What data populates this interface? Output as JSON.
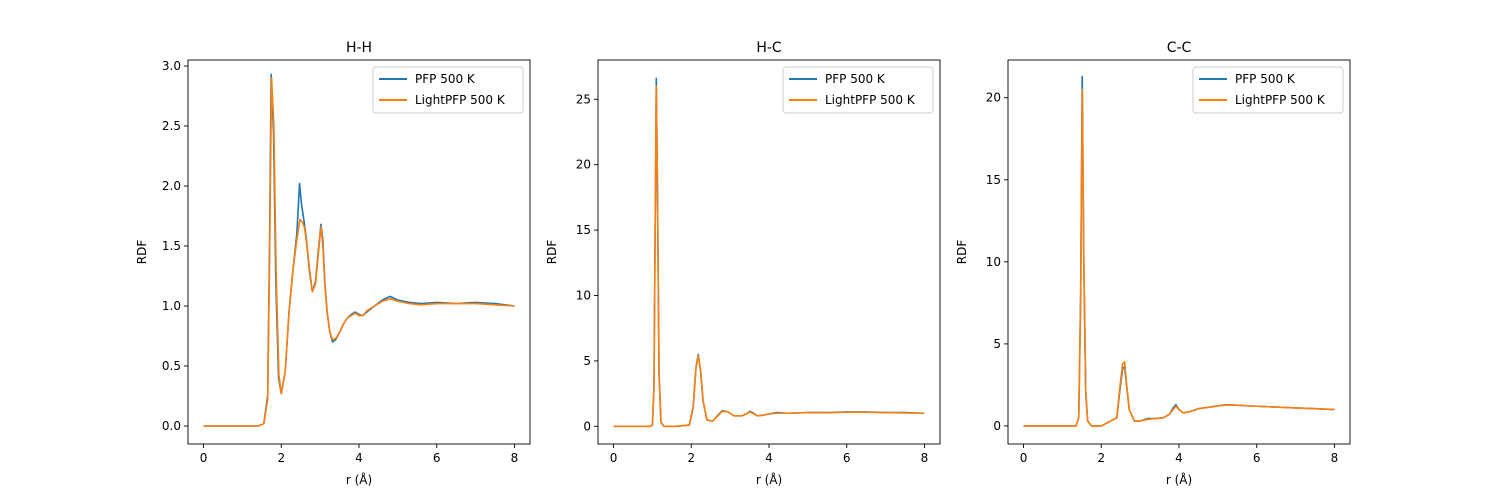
{
  "legend_labels": [
    "PFP 500 K",
    "LightPFP 500 K"
  ],
  "colors": {
    "pfp": "#1f77b4",
    "lightpfp": "#ff7f0e"
  },
  "chart_data": [
    {
      "type": "line",
      "title": "H-H",
      "xlabel": "r (Å)",
      "ylabel": "RDF",
      "xlim": [
        -0.4,
        8.4
      ],
      "ylim": [
        -0.15,
        3.05
      ],
      "xticks": [
        0,
        2,
        4,
        6,
        8
      ],
      "yticks": [
        0.0,
        0.5,
        1.0,
        1.5,
        2.0,
        2.5,
        3.0
      ],
      "ytick_labels": [
        "0.0",
        "0.5",
        "1.0",
        "1.5",
        "2.0",
        "2.5",
        "3.0"
      ],
      "grid": false,
      "legend": "upper right",
      "series": [
        {
          "name": "PFP 500 K",
          "color": "#1f77b4",
          "x": [
            0,
            1.4,
            1.55,
            1.65,
            1.7,
            1.74,
            1.8,
            1.86,
            1.93,
            2.0,
            2.1,
            2.2,
            2.3,
            2.4,
            2.47,
            2.52,
            2.58,
            2.65,
            2.72,
            2.8,
            2.88,
            2.95,
            3.02,
            3.07,
            3.12,
            3.18,
            3.25,
            3.32,
            3.4,
            3.5,
            3.6,
            3.7,
            3.8,
            3.9,
            4.0,
            4.1,
            4.2,
            4.4,
            4.6,
            4.8,
            5.0,
            5.3,
            5.6,
            6.0,
            6.5,
            7.0,
            7.5,
            8.0
          ],
          "y": [
            0,
            0,
            0.02,
            0.25,
            1.55,
            2.93,
            2.45,
            1.2,
            0.4,
            0.27,
            0.45,
            0.95,
            1.3,
            1.6,
            2.02,
            1.85,
            1.72,
            1.55,
            1.3,
            1.12,
            1.2,
            1.45,
            1.68,
            1.55,
            1.2,
            0.95,
            0.78,
            0.7,
            0.72,
            0.78,
            0.85,
            0.9,
            0.93,
            0.95,
            0.93,
            0.92,
            0.95,
            1.0,
            1.05,
            1.08,
            1.05,
            1.03,
            1.02,
            1.03,
            1.02,
            1.03,
            1.02,
            1.0
          ]
        },
        {
          "name": "LightPFP 500 K",
          "color": "#ff7f0e",
          "x": [
            0,
            1.4,
            1.55,
            1.65,
            1.7,
            1.75,
            1.81,
            1.87,
            1.94,
            2.0,
            2.1,
            2.2,
            2.3,
            2.4,
            2.48,
            2.54,
            2.6,
            2.66,
            2.73,
            2.8,
            2.88,
            2.95,
            3.02,
            3.07,
            3.12,
            3.18,
            3.25,
            3.32,
            3.4,
            3.5,
            3.6,
            3.7,
            3.8,
            3.9,
            4.0,
            4.1,
            4.2,
            4.4,
            4.6,
            4.8,
            5.0,
            5.3,
            5.6,
            6.0,
            6.5,
            7.0,
            7.5,
            8.0
          ],
          "y": [
            0,
            0,
            0.02,
            0.22,
            1.4,
            2.9,
            2.5,
            1.25,
            0.42,
            0.27,
            0.45,
            0.95,
            1.3,
            1.55,
            1.72,
            1.7,
            1.65,
            1.5,
            1.3,
            1.12,
            1.18,
            1.42,
            1.66,
            1.5,
            1.18,
            0.95,
            0.78,
            0.72,
            0.73,
            0.78,
            0.85,
            0.9,
            0.92,
            0.94,
            0.92,
            0.92,
            0.96,
            1.0,
            1.04,
            1.06,
            1.04,
            1.02,
            1.01,
            1.02,
            1.02,
            1.02,
            1.01,
            1.0
          ]
        }
      ]
    },
    {
      "type": "line",
      "title": "H-C",
      "xlabel": "r (Å)",
      "ylabel": "RDF",
      "xlim": [
        -0.4,
        8.4
      ],
      "ylim": [
        -1.35,
        28.0
      ],
      "xticks": [
        0,
        2,
        4,
        6,
        8
      ],
      "yticks": [
        0,
        5,
        10,
        15,
        20,
        25
      ],
      "ytick_labels": [
        "0",
        "5",
        "10",
        "15",
        "20",
        "25"
      ],
      "grid": false,
      "legend": "upper right",
      "series": [
        {
          "name": "PFP 500 K",
          "color": "#1f77b4",
          "x": [
            0,
            0.95,
            1.0,
            1.04,
            1.07,
            1.1,
            1.13,
            1.17,
            1.22,
            1.3,
            1.6,
            1.95,
            2.05,
            2.12,
            2.18,
            2.24,
            2.3,
            2.4,
            2.55,
            2.7,
            2.8,
            2.95,
            3.1,
            3.3,
            3.45,
            3.5,
            3.58,
            3.7,
            3.85,
            4.0,
            4.2,
            4.5,
            5.0,
            5.5,
            6.0,
            6.5,
            7.0,
            7.5,
            8.0
          ],
          "y": [
            0,
            0,
            0.1,
            3.0,
            15.0,
            26.6,
            18.0,
            4.0,
            0.3,
            0.0,
            0.0,
            0.1,
            1.5,
            4.5,
            5.5,
            4.2,
            2.0,
            0.5,
            0.4,
            0.9,
            1.2,
            1.1,
            0.8,
            0.8,
            1.0,
            1.15,
            1.05,
            0.8,
            0.85,
            0.95,
            1.05,
            1.0,
            1.05,
            1.05,
            1.1,
            1.1,
            1.05,
            1.05,
            1.0
          ]
        },
        {
          "name": "LightPFP 500 K",
          "color": "#ff7f0e",
          "x": [
            0,
            0.95,
            1.0,
            1.04,
            1.07,
            1.1,
            1.13,
            1.17,
            1.22,
            1.3,
            1.6,
            1.95,
            2.05,
            2.12,
            2.18,
            2.24,
            2.3,
            2.4,
            2.55,
            2.7,
            2.8,
            2.95,
            3.1,
            3.3,
            3.45,
            3.5,
            3.58,
            3.7,
            3.85,
            4.0,
            4.2,
            4.5,
            5.0,
            5.5,
            6.0,
            6.5,
            7.0,
            7.5,
            8.0
          ],
          "y": [
            0,
            0,
            0.1,
            2.8,
            14.5,
            26.0,
            18.5,
            4.2,
            0.3,
            0.0,
            0.0,
            0.1,
            1.4,
            4.4,
            5.4,
            4.3,
            2.1,
            0.5,
            0.4,
            0.85,
            1.15,
            1.1,
            0.8,
            0.8,
            1.0,
            1.1,
            1.0,
            0.8,
            0.85,
            0.95,
            1.0,
            1.0,
            1.05,
            1.05,
            1.08,
            1.08,
            1.05,
            1.02,
            1.0
          ]
        }
      ]
    },
    {
      "type": "line",
      "title": "C-C",
      "xlabel": "r (Å)",
      "ylabel": "RDF",
      "xlim": [
        -0.4,
        8.4
      ],
      "ylim": [
        -1.1,
        22.3
      ],
      "xticks": [
        0,
        2,
        4,
        6,
        8
      ],
      "yticks": [
        0,
        5,
        10,
        15,
        20
      ],
      "ytick_labels": [
        "0",
        "5",
        "10",
        "15",
        "20"
      ],
      "grid": false,
      "legend": "upper right",
      "series": [
        {
          "name": "PFP 500 K",
          "color": "#1f77b4",
          "x": [
            0,
            1.35,
            1.42,
            1.47,
            1.51,
            1.55,
            1.6,
            1.65,
            1.75,
            2.0,
            2.4,
            2.48,
            2.55,
            2.6,
            2.65,
            2.72,
            2.85,
            3.0,
            3.2,
            3.4,
            3.6,
            3.75,
            3.85,
            3.92,
            4.0,
            4.1,
            4.25,
            4.5,
            4.8,
            5.2,
            5.6,
            6.0,
            6.5,
            7.0,
            7.5,
            8.0
          ],
          "y": [
            0,
            0,
            0.5,
            8.0,
            21.3,
            10.0,
            2.0,
            0.3,
            0.0,
            0.0,
            0.5,
            2.2,
            3.5,
            3.6,
            2.5,
            1.0,
            0.3,
            0.3,
            0.45,
            0.45,
            0.5,
            0.7,
            1.1,
            1.3,
            1.0,
            0.8,
            0.85,
            1.05,
            1.15,
            1.3,
            1.25,
            1.2,
            1.15,
            1.1,
            1.05,
            1.0
          ]
        },
        {
          "name": "LightPFP 500 K",
          "color": "#ff7f0e",
          "x": [
            0,
            1.35,
            1.42,
            1.47,
            1.51,
            1.55,
            1.6,
            1.65,
            1.75,
            2.0,
            2.4,
            2.48,
            2.55,
            2.6,
            2.65,
            2.72,
            2.85,
            3.0,
            3.2,
            3.4,
            3.6,
            3.75,
            3.85,
            3.92,
            4.0,
            4.1,
            4.25,
            4.5,
            4.8,
            5.2,
            5.6,
            6.0,
            6.5,
            7.0,
            7.5,
            8.0
          ],
          "y": [
            0,
            0,
            0.5,
            7.5,
            20.5,
            10.5,
            2.2,
            0.3,
            0.0,
            0.0,
            0.5,
            2.4,
            3.8,
            3.9,
            2.6,
            1.0,
            0.3,
            0.3,
            0.4,
            0.45,
            0.5,
            0.7,
            1.0,
            1.2,
            1.0,
            0.8,
            0.85,
            1.05,
            1.15,
            1.28,
            1.25,
            1.2,
            1.15,
            1.1,
            1.05,
            1.0
          ]
        }
      ]
    }
  ]
}
